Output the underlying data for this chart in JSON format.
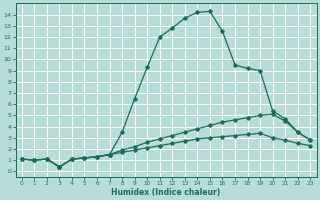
{
  "xlabel": "Humidex (Indice chaleur)",
  "bg_color": "#b8ddd8",
  "grid_color": "#ffffff",
  "line_color": "#1a6b5a",
  "xlim": [
    -0.5,
    23.5
  ],
  "ylim": [
    -0.5,
    15.0
  ],
  "xticks": [
    0,
    1,
    2,
    3,
    4,
    5,
    6,
    7,
    8,
    9,
    10,
    11,
    12,
    13,
    14,
    15,
    16,
    17,
    18,
    19,
    20,
    21,
    22,
    23
  ],
  "yticks": [
    0,
    1,
    2,
    3,
    4,
    5,
    6,
    7,
    8,
    9,
    10,
    11,
    12,
    13,
    14
  ],
  "peak_x": [
    0,
    1,
    2,
    3,
    4,
    5,
    6,
    7,
    8,
    9,
    10,
    11,
    12,
    13,
    14,
    15,
    16,
    17,
    18,
    19,
    20,
    21,
    22,
    23
  ],
  "peak_y": [
    1.1,
    1.0,
    1.1,
    0.4,
    1.1,
    1.2,
    1.3,
    1.5,
    3.5,
    6.5,
    9.3,
    12.0,
    12.8,
    13.7,
    14.2,
    14.3,
    12.5,
    9.5,
    9.2,
    9.0,
    5.4,
    4.7,
    3.5,
    2.8
  ],
  "mid_x": [
    0,
    1,
    2,
    3,
    4,
    5,
    6,
    7,
    8,
    9,
    10,
    11,
    12,
    13,
    14,
    15,
    16,
    17,
    18,
    19,
    20,
    21,
    22,
    23
  ],
  "mid_y": [
    1.1,
    1.0,
    1.1,
    0.4,
    1.1,
    1.2,
    1.3,
    1.5,
    1.9,
    2.2,
    2.6,
    2.9,
    3.2,
    3.5,
    3.8,
    4.1,
    4.4,
    4.6,
    4.8,
    5.0,
    5.1,
    4.5,
    3.5,
    2.8
  ],
  "low_x": [
    0,
    1,
    2,
    3,
    4,
    5,
    6,
    7,
    8,
    9,
    10,
    11,
    12,
    13,
    14,
    15,
    16,
    17,
    18,
    19,
    20,
    21,
    22,
    23
  ],
  "low_y": [
    1.1,
    1.0,
    1.1,
    0.4,
    1.1,
    1.2,
    1.3,
    1.5,
    1.7,
    1.9,
    2.1,
    2.3,
    2.5,
    2.7,
    2.9,
    3.0,
    3.1,
    3.2,
    3.3,
    3.4,
    3.0,
    2.8,
    2.5,
    2.3
  ]
}
